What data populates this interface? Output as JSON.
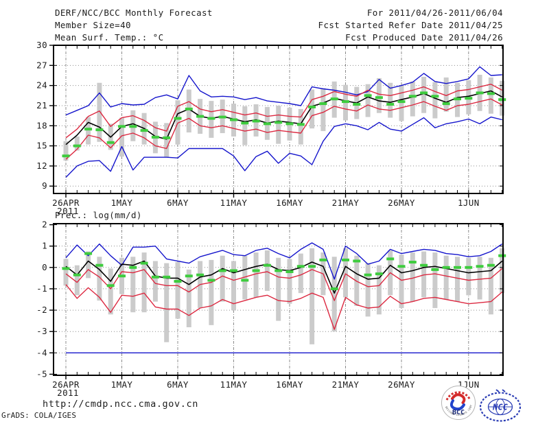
{
  "header": {
    "title": "DERF/NCC/BCC Monthly Forecast",
    "member_size": "Member Size=40",
    "for_range": "For 2011/04/26-2011/06/04",
    "refer_date": "Fcst Started Refer Date 2011/04/25",
    "produced_date": "Fcst Produced Date 2011/04/26"
  },
  "footer": {
    "url": "http://cmdp.ncc.cma.gov.cn",
    "credit": "GrADS: COLA/IGES",
    "logos": {
      "bcc": "BCC",
      "ncc": "NCC",
      "bcc_arc": "BEIJING CLIMATE CENTER"
    }
  },
  "colors": {
    "blue": "#1414cc",
    "red": "#dc2840",
    "green": "#3ecc3e",
    "bar": "#cbcbcb",
    "grid": "#8c8c8c",
    "frame": "#000000",
    "text": "#1c1c1c",
    "logo_blue": "#2a3cb4",
    "logo_red": "#d42a2a",
    "logo_navy": "#1a2a7a"
  },
  "chart_data": [
    {
      "type": "line",
      "title": "Mean Surf. Temp.: °C",
      "ylim": [
        7.9,
        30
      ],
      "yticks": [
        30,
        27,
        24,
        21,
        18,
        15,
        12,
        9
      ],
      "grid": true,
      "xticks": [
        {
          "day": 0,
          "label": "26APR",
          "sub": "2011"
        },
        {
          "day": 5,
          "label": "1MAY"
        },
        {
          "day": 10,
          "label": "6MAY"
        },
        {
          "day": 15,
          "label": "11MAY"
        },
        {
          "day": 20,
          "label": "16MAY"
        },
        {
          "day": 25,
          "label": "21MAY"
        },
        {
          "day": 30,
          "label": "26MAY"
        },
        {
          "day": 36,
          "label": "1JUN"
        }
      ],
      "categories": [
        "2011-04-26",
        "2011-04-27",
        "2011-04-28",
        "2011-04-29",
        "2011-04-30",
        "2011-05-01",
        "2011-05-02",
        "2011-05-03",
        "2011-05-04",
        "2011-05-05",
        "2011-05-06",
        "2011-05-07",
        "2011-05-08",
        "2011-05-09",
        "2011-05-10",
        "2011-05-11",
        "2011-05-12",
        "2011-05-13",
        "2011-05-14",
        "2011-05-15",
        "2011-05-16",
        "2011-05-17",
        "2011-05-18",
        "2011-05-19",
        "2011-05-20",
        "2011-05-21",
        "2011-05-22",
        "2011-05-23",
        "2011-05-24",
        "2011-05-25",
        "2011-05-26",
        "2011-05-27",
        "2011-05-28",
        "2011-05-29",
        "2011-05-30",
        "2011-05-31",
        "2011-06-01",
        "2011-06-02",
        "2011-06-03",
        "2011-06-04"
      ],
      "series": [
        {
          "name": "ensemble-max",
          "color": "blue",
          "style": "line",
          "values": [
            19.6,
            20.3,
            21.0,
            22.9,
            20.8,
            21.3,
            21.1,
            21.2,
            22.2,
            22.6,
            22.0,
            25.5,
            23.2,
            22.3,
            22.4,
            22.3,
            21.9,
            22.2,
            21.7,
            21.5,
            21.3,
            21.0,
            23.8,
            23.5,
            23.3,
            23.0,
            22.6,
            23.1,
            24.9,
            23.6,
            24.0,
            24.5,
            25.8,
            24.6,
            24.3,
            24.6,
            25.0,
            26.8,
            25.5,
            25.6
          ]
        },
        {
          "name": "ensemble-min",
          "color": "blue",
          "style": "line",
          "values": [
            10.3,
            12.0,
            12.7,
            12.8,
            11.2,
            14.9,
            11.4,
            13.3,
            13.3,
            13.3,
            13.2,
            14.6,
            14.6,
            14.6,
            14.6,
            13.5,
            11.3,
            13.4,
            14.2,
            12.4,
            13.9,
            13.5,
            12.2,
            15.7,
            17.9,
            18.3,
            18.0,
            17.4,
            18.5,
            17.5,
            17.2,
            18.2,
            19.2,
            17.7,
            18.3,
            18.6,
            19.0,
            18.3,
            19.3,
            18.9
          ]
        },
        {
          "name": "mean-plus-std",
          "color": "red",
          "style": "line",
          "values": [
            16.2,
            17.5,
            19.4,
            20.2,
            17.9,
            19.2,
            19.5,
            18.8,
            17.7,
            17.2,
            20.9,
            21.6,
            20.5,
            20.1,
            20.4,
            20.0,
            19.6,
            19.9,
            19.4,
            19.6,
            19.4,
            19.3,
            21.9,
            22.4,
            23.1,
            22.7,
            22.4,
            23.3,
            22.7,
            22.5,
            22.9,
            23.3,
            23.8,
            23.1,
            22.5,
            23.2,
            23.4,
            23.8,
            24.2,
            23.3
          ]
        },
        {
          "name": "mean-minus-std",
          "color": "red",
          "style": "line",
          "values": [
            13.0,
            14.5,
            16.6,
            16.2,
            14.7,
            16.5,
            16.9,
            16.2,
            15.0,
            14.6,
            18.4,
            19.1,
            18.0,
            17.7,
            18.0,
            17.6,
            17.2,
            17.5,
            17.0,
            17.3,
            17.1,
            16.9,
            19.5,
            20.0,
            20.9,
            20.5,
            20.2,
            21.1,
            20.5,
            20.3,
            20.7,
            21.1,
            21.6,
            20.9,
            20.3,
            21.0,
            21.2,
            21.6,
            22.0,
            21.1
          ]
        },
        {
          "name": "ensemble-mean",
          "color": "frame",
          "style": "line",
          "values": [
            15.2,
            16.6,
            18.5,
            17.8,
            16.3,
            17.9,
            18.3,
            17.6,
            16.4,
            16.0,
            19.8,
            20.5,
            19.4,
            19.1,
            19.4,
            19.0,
            18.6,
            18.9,
            18.4,
            18.7,
            18.5,
            18.3,
            20.9,
            21.4,
            22.1,
            21.7,
            21.4,
            22.3,
            21.7,
            21.5,
            21.9,
            22.3,
            22.8,
            22.1,
            21.5,
            22.2,
            22.4,
            22.8,
            23.2,
            22.3
          ]
        },
        {
          "name": "reference-dash",
          "color": "green",
          "style": "dash",
          "values": [
            13.5,
            15.0,
            17.5,
            17.4,
            15.5,
            17.9,
            17.9,
            17.3,
            16.3,
            16.2,
            19.1,
            20.5,
            19.4,
            19.1,
            19.3,
            18.9,
            18.4,
            18.7,
            18.3,
            18.5,
            18.3,
            18.2,
            20.8,
            21.3,
            22.0,
            21.6,
            21.2,
            22.5,
            22.2,
            21.2,
            21.6,
            22.4,
            22.9,
            22.4,
            21.3,
            22.0,
            22.1,
            22.9,
            22.8,
            21.9
          ]
        }
      ],
      "bars": {
        "lo": [
          12.8,
          14.3,
          15.2,
          15.6,
          14.4,
          13.4,
          15.7,
          15.2,
          13.9,
          13.3,
          15.2,
          17.0,
          16.8,
          16.2,
          16.9,
          16.4,
          15.1,
          16.4,
          15.9,
          15.3,
          15.8,
          15.2,
          17.6,
          17.2,
          19.2,
          18.8,
          19.0,
          19.3,
          19.9,
          19.2,
          18.7,
          19.4,
          19.9,
          19.1,
          20.1,
          19.3,
          19.7,
          20.2,
          19.8,
          19.5
        ],
        "hi": [
          15.7,
          16.4,
          19.3,
          24.4,
          18.3,
          19.2,
          20.3,
          19.9,
          18.6,
          18.4,
          21.8,
          23.4,
          22.0,
          21.7,
          21.9,
          21.3,
          20.9,
          21.2,
          20.8,
          21.0,
          20.7,
          20.5,
          23.4,
          23.6,
          24.6,
          24.1,
          23.8,
          24.2,
          25.1,
          24.4,
          24.0,
          24.6,
          25.3,
          24.5,
          25.2,
          24.4,
          24.8,
          25.6,
          25.2,
          24.7
        ]
      }
    },
    {
      "type": "line",
      "title": "Prec.: log(mm/d)",
      "ylim": [
        -5.05,
        2.05
      ],
      "yticks": [
        2,
        1,
        0,
        -1,
        -2,
        -3,
        -4,
        -5
      ],
      "grid": true,
      "xticks": [
        {
          "day": 0,
          "label": "26APR",
          "sub": "2011"
        },
        {
          "day": 5,
          "label": "1MAY"
        },
        {
          "day": 10,
          "label": "6MAY"
        },
        {
          "day": 15,
          "label": "11MAY"
        },
        {
          "day": 20,
          "label": "16MAY"
        },
        {
          "day": 25,
          "label": "21MAY"
        },
        {
          "day": 30,
          "label": "26MAY"
        },
        {
          "day": 36,
          "label": "1JUN"
        }
      ],
      "categories": [
        "2011-04-26",
        "2011-04-27",
        "2011-04-28",
        "2011-04-29",
        "2011-04-30",
        "2011-05-01",
        "2011-05-02",
        "2011-05-03",
        "2011-05-04",
        "2011-05-05",
        "2011-05-06",
        "2011-05-07",
        "2011-05-08",
        "2011-05-09",
        "2011-05-10",
        "2011-05-11",
        "2011-05-12",
        "2011-05-13",
        "2011-05-14",
        "2011-05-15",
        "2011-05-16",
        "2011-05-17",
        "2011-05-18",
        "2011-05-19",
        "2011-05-20",
        "2011-05-21",
        "2011-05-22",
        "2011-05-23",
        "2011-05-24",
        "2011-05-25",
        "2011-05-26",
        "2011-05-27",
        "2011-05-28",
        "2011-05-29",
        "2011-05-30",
        "2011-05-31",
        "2011-06-01",
        "2011-06-02",
        "2011-06-03",
        "2011-06-04"
      ],
      "series": [
        {
          "name": "ensemble-max",
          "color": "blue",
          "style": "line",
          "values": [
            0.45,
            1.05,
            0.55,
            1.1,
            0.55,
            0.1,
            0.95,
            0.95,
            1.0,
            0.4,
            0.3,
            0.2,
            0.5,
            0.65,
            0.8,
            0.6,
            0.55,
            0.8,
            0.9,
            0.65,
            0.45,
            0.85,
            1.15,
            0.85,
            -0.55,
            1.0,
            0.65,
            0.15,
            0.3,
            0.85,
            0.65,
            0.75,
            0.85,
            0.8,
            0.65,
            0.6,
            0.5,
            0.55,
            0.75,
            1.1
          ]
        },
        {
          "name": "ensemble-min",
          "color": "blue",
          "style": "line",
          "values": [
            -4.0,
            -4.0,
            -4.0,
            -4.0,
            -4.0,
            -4.0,
            -4.0,
            -4.0,
            -4.0,
            -4.0,
            -4.0,
            -4.0,
            -4.0,
            -4.0,
            -4.0,
            -4.0,
            -4.0,
            -4.0,
            -4.0,
            -4.0,
            -4.0,
            -4.0,
            -4.0,
            -4.0,
            -4.0,
            -4.0,
            -4.0,
            -4.0,
            -4.0,
            -4.0,
            -4.0,
            -4.0,
            -4.0,
            -4.0,
            -4.0,
            -4.0,
            -4.0,
            -4.0,
            -4.0,
            -4.0
          ]
        },
        {
          "name": "mean-plus-std",
          "color": "red",
          "style": "line",
          "values": [
            -0.3,
            -0.7,
            -0.1,
            -0.45,
            -1.0,
            -0.2,
            -0.25,
            -0.1,
            -0.75,
            -0.85,
            -0.85,
            -1.15,
            -0.8,
            -0.7,
            -0.4,
            -0.6,
            -0.45,
            -0.3,
            -0.2,
            -0.45,
            -0.5,
            -0.35,
            -0.1,
            -0.3,
            -1.55,
            -0.3,
            -0.65,
            -0.9,
            -0.85,
            -0.25,
            -0.6,
            -0.5,
            -0.35,
            -0.3,
            -0.4,
            -0.5,
            -0.6,
            -0.55,
            -0.5,
            -0.05
          ]
        },
        {
          "name": "mean-minus-std",
          "color": "red",
          "style": "line",
          "values": [
            -0.8,
            -1.45,
            -0.95,
            -1.4,
            -2.1,
            -1.3,
            -1.35,
            -1.2,
            -1.85,
            -1.95,
            -1.95,
            -2.25,
            -1.9,
            -1.8,
            -1.5,
            -1.7,
            -1.55,
            -1.4,
            -1.3,
            -1.55,
            -1.6,
            -1.45,
            -1.2,
            -1.4,
            -2.9,
            -1.4,
            -1.75,
            -1.9,
            -1.85,
            -1.35,
            -1.7,
            -1.6,
            -1.45,
            -1.4,
            -1.5,
            -1.6,
            -1.7,
            -1.65,
            -1.6,
            -1.15
          ]
        },
        {
          "name": "ensemble-mean",
          "color": "frame",
          "style": "line",
          "values": [
            0.05,
            -0.35,
            0.3,
            -0.1,
            -0.65,
            0.15,
            0.1,
            0.3,
            -0.4,
            -0.5,
            -0.5,
            -0.8,
            -0.45,
            -0.35,
            -0.05,
            -0.25,
            -0.1,
            0.05,
            0.15,
            -0.1,
            -0.15,
            0.0,
            0.25,
            0.05,
            -1.2,
            0.05,
            -0.3,
            -0.55,
            -0.5,
            0.1,
            -0.25,
            -0.15,
            0.0,
            0.05,
            -0.05,
            -0.15,
            -0.25,
            -0.2,
            -0.15,
            0.3
          ]
        },
        {
          "name": "reference-dash",
          "color": "green",
          "style": "dash",
          "values": [
            -0.05,
            -0.35,
            0.65,
            0.1,
            -0.85,
            -0.4,
            0.0,
            0.2,
            -0.45,
            -0.45,
            -0.65,
            -0.4,
            -0.35,
            -0.6,
            -0.15,
            -0.15,
            -0.6,
            -0.15,
            0.1,
            -0.15,
            -0.2,
            0.05,
            0.05,
            0.35,
            -1.0,
            0.35,
            0.3,
            -0.35,
            -0.3,
            0.4,
            0.05,
            0.25,
            0.1,
            -0.1,
            0.0,
            0.0,
            0.0,
            0.05,
            0.1,
            0.55
          ]
        }
      ],
      "bars": {
        "lo": [
          -0.85,
          -1.3,
          -0.5,
          -1.55,
          -2.2,
          -1.25,
          -2.1,
          -2.1,
          -1.6,
          -3.5,
          -2.4,
          -2.8,
          -1.9,
          -2.7,
          -1.6,
          -2.0,
          -1.5,
          -1.4,
          -1.1,
          -2.5,
          -1.7,
          -1.2,
          -3.6,
          -1.3,
          -3.0,
          -1.4,
          -1.8,
          -2.3,
          -2.2,
          -1.3,
          -1.9,
          -1.6,
          -1.4,
          -1.9,
          -1.5,
          -1.6,
          -1.3,
          -1.5,
          -2.2,
          -1.2
        ],
        "hi": [
          0.4,
          0.1,
          0.75,
          0.5,
          -0.05,
          0.45,
          0.5,
          0.7,
          0.3,
          0.2,
          0.25,
          -0.1,
          0.3,
          0.35,
          0.55,
          0.3,
          0.55,
          0.7,
          0.8,
          0.45,
          0.4,
          0.65,
          0.9,
          0.7,
          0.5,
          0.9,
          0.55,
          0.2,
          0.1,
          0.8,
          0.6,
          0.7,
          0.75,
          0.7,
          0.55,
          0.5,
          0.45,
          0.5,
          0.45,
          0.9
        ]
      }
    }
  ]
}
